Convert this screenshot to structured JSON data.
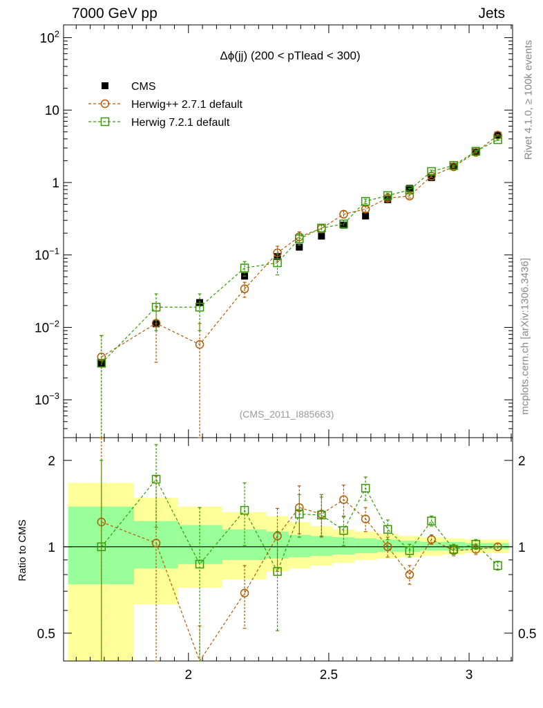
{
  "header": {
    "left": "7000 GeV pp",
    "right": "Jets"
  },
  "side_labels": {
    "rivet": "Rivet 4.1.0, ≥ 100k events",
    "mcplots": "mcplots.cern.ch [arXiv:1306.3436]"
  },
  "chart_data": {
    "type": "scatter",
    "title": "Δϕ(jj) (200 < pTlead <  300)",
    "watermark": "(CMS_2011_I885663)",
    "legend_position": "top-left",
    "main": {
      "yscale": "log",
      "ylim": [
        0.0003,
        150
      ],
      "yticks": [
        {
          "value": 0.001,
          "base": "10",
          "exp": "−3"
        },
        {
          "value": 0.01,
          "base": "10",
          "exp": "−2"
        },
        {
          "value": 0.1,
          "base": "10",
          "exp": "−1"
        },
        {
          "value": 1,
          "base": "1",
          "exp": ""
        },
        {
          "value": 10,
          "base": "10",
          "exp": ""
        },
        {
          "value": 100,
          "base": "10",
          "exp": "2"
        }
      ]
    },
    "ratio": {
      "ylabel": "Ratio to CMS",
      "yscale": "log",
      "ylim": [
        0.4,
        2.4
      ],
      "yticks": [
        {
          "value": 0.5,
          "label": "0.5"
        },
        {
          "value": 1,
          "label": "1"
        },
        {
          "value": 2,
          "label": "2"
        }
      ]
    },
    "xlim": [
      1.555,
      3.155
    ],
    "xticks": [
      {
        "value": 2,
        "label": "2"
      },
      {
        "value": 2.5,
        "label": "2.5"
      },
      {
        "value": 3,
        "label": "3"
      }
    ],
    "bins": [
      {
        "lo": 1.571,
        "hi": 1.806,
        "x": 1.69
      },
      {
        "lo": 1.806,
        "hi": 1.963,
        "x": 1.885
      },
      {
        "lo": 1.963,
        "hi": 2.121,
        "x": 2.04
      },
      {
        "lo": 2.121,
        "hi": 2.278,
        "x": 2.2
      },
      {
        "lo": 2.278,
        "hi": 2.356,
        "x": 2.317
      },
      {
        "lo": 2.356,
        "hi": 2.435,
        "x": 2.395
      },
      {
        "lo": 2.435,
        "hi": 2.513,
        "x": 2.474
      },
      {
        "lo": 2.513,
        "hi": 2.592,
        "x": 2.553
      },
      {
        "lo": 2.592,
        "hi": 2.67,
        "x": 2.631
      },
      {
        "lo": 2.67,
        "hi": 2.749,
        "x": 2.71
      },
      {
        "lo": 2.749,
        "hi": 2.827,
        "x": 2.788
      },
      {
        "lo": 2.827,
        "hi": 2.906,
        "x": 2.866
      },
      {
        "lo": 2.906,
        "hi": 2.985,
        "x": 2.945
      },
      {
        "lo": 2.985,
        "hi": 3.063,
        "x": 3.024
      },
      {
        "lo": 3.063,
        "hi": 3.142,
        "x": 3.102
      }
    ],
    "bands": {
      "stat": [
        0.75,
        0.62,
        0.58,
        0.5,
        0.4,
        0.3,
        0.27,
        0.24,
        0.2,
        0.17,
        0.14,
        0.11,
        0.09,
        0.07,
        0.06
      ],
      "total": [
        0.74,
        0.62,
        0.58,
        0.5,
        0.4,
        0.3,
        0.27,
        0.24,
        0.2,
        0.17,
        0.14,
        0.11,
        0.09,
        0.07,
        0.06
      ],
      "stat_band": [
        [
          0.74,
          1.38
        ],
        [
          0.84,
          1.23
        ],
        [
          0.87,
          1.19
        ],
        [
          0.9,
          1.15
        ],
        [
          0.91,
          1.13
        ],
        [
          0.92,
          1.1
        ],
        [
          0.93,
          1.09
        ],
        [
          0.94,
          1.08
        ],
        [
          0.95,
          1.07
        ],
        [
          0.96,
          1.06
        ],
        [
          0.96,
          1.05
        ],
        [
          0.97,
          1.04
        ],
        [
          0.97,
          1.04
        ],
        [
          0.98,
          1.03
        ],
        [
          0.98,
          1.03
        ]
      ],
      "total_band": [
        [
          0.3,
          1.67
        ],
        [
          0.63,
          1.48
        ],
        [
          0.72,
          1.38
        ],
        [
          0.77,
          1.32
        ],
        [
          0.82,
          1.28
        ],
        [
          0.84,
          1.22
        ],
        [
          0.86,
          1.18
        ],
        [
          0.88,
          1.15
        ],
        [
          0.9,
          1.13
        ],
        [
          0.91,
          1.11
        ],
        [
          0.92,
          1.09
        ],
        [
          0.93,
          1.08
        ],
        [
          0.94,
          1.07
        ],
        [
          0.95,
          1.06
        ],
        [
          0.95,
          1.06
        ]
      ]
    },
    "series": [
      {
        "name": "CMS",
        "color": "#000000",
        "marker": "filled-square",
        "values": [
          0.0032,
          0.0112,
          0.022,
          0.051,
          0.095,
          0.128,
          0.182,
          0.258,
          0.345,
          0.58,
          0.83,
          1.17,
          1.67,
          2.65,
          4.5
        ]
      },
      {
        "name": "Herwig++ 2.7.1 default",
        "color": "#b35900",
        "marker": "open-circle",
        "values": [
          0.0039,
          0.0114,
          0.0058,
          0.034,
          0.107,
          0.178,
          0.232,
          0.365,
          0.43,
          0.61,
          0.65,
          1.23,
          1.65,
          2.61,
          4.5
        ],
        "err_lo": [
          0.0039,
          0.0081,
          0.0058,
          0.008,
          0.025,
          0.03,
          0.03,
          0.04,
          0.04,
          0.05,
          0.04,
          0.05,
          0.05,
          0.07,
          0.1
        ],
        "err_hi": [
          0.0038,
          0.0081,
          0.0055,
          0.008,
          0.025,
          0.03,
          0.03,
          0.04,
          0.04,
          0.05,
          0.04,
          0.05,
          0.05,
          0.07,
          0.1
        ],
        "ratio": [
          1.22,
          1.03,
          0.27,
          0.69,
          1.09,
          1.37,
          1.3,
          1.46,
          1.25,
          1.0,
          0.8,
          1.06,
          0.97,
          0.98,
          1.0
        ],
        "ratio_err": [
          1.2,
          0.73,
          0.26,
          0.17,
          0.27,
          0.26,
          0.22,
          0.18,
          0.12,
          0.08,
          0.06,
          0.04,
          0.04,
          0.04,
          0.03
        ]
      },
      {
        "name": "Herwig 7.2.1 default",
        "color": "#339900",
        "marker": "open-square",
        "values": [
          0.0032,
          0.019,
          0.019,
          0.066,
          0.078,
          0.167,
          0.235,
          0.268,
          0.55,
          0.66,
          0.79,
          1.42,
          1.72,
          2.7,
          3.9
        ],
        "err_lo": [
          0.0032,
          0.01,
          0.01,
          0.015,
          0.025,
          0.03,
          0.03,
          0.035,
          0.04,
          0.05,
          0.04,
          0.06,
          0.05,
          0.07,
          0.1
        ],
        "err_hi": [
          0.0045,
          0.01,
          0.01,
          0.015,
          0.025,
          0.03,
          0.03,
          0.035,
          0.04,
          0.05,
          0.04,
          0.06,
          0.05,
          0.07,
          0.1
        ],
        "ratio": [
          1.0,
          1.72,
          0.87,
          1.34,
          0.82,
          1.3,
          1.29,
          1.14,
          1.6,
          1.15,
          0.97,
          1.23,
          0.98,
          1.02,
          0.86
        ],
        "ratio_err": [
          1.0,
          0.55,
          0.5,
          0.33,
          0.31,
          0.22,
          0.2,
          0.13,
          0.15,
          0.09,
          0.05,
          0.05,
          0.04,
          0.04,
          0.03
        ]
      }
    ]
  }
}
